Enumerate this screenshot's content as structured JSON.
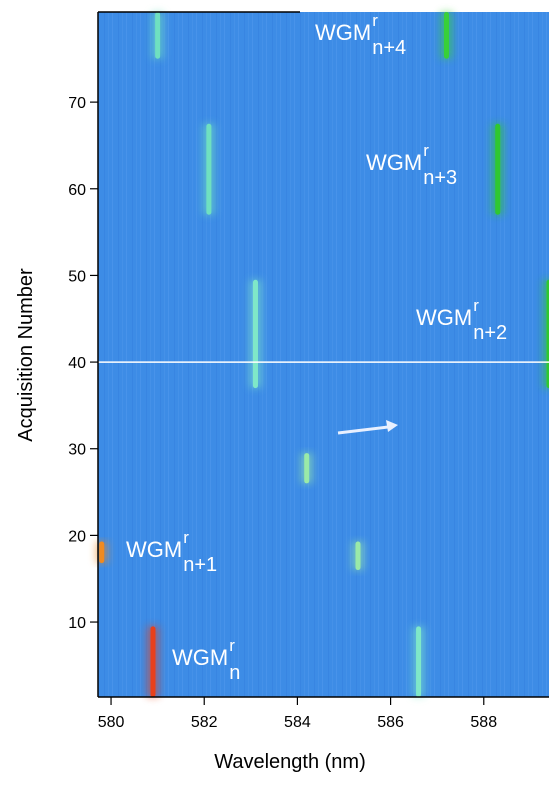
{
  "chart_data": {
    "type": "heatmap",
    "xlabel": "Wavelength (nm)",
    "ylabel": "Acquisition Number",
    "xlim": [
      579.72,
      589.4
    ],
    "ylim": [
      1.35,
      80.4
    ],
    "xticks": [
      580,
      582,
      584,
      586,
      588
    ],
    "yticks": [
      10,
      20,
      30,
      40,
      50,
      60,
      70
    ],
    "background": "#3d8ce6",
    "hline": 40,
    "streaks": [
      {
        "x": 580.9,
        "y": [
          1.35,
          9.5
        ],
        "color": "#e8401c"
      },
      {
        "x": 579.8,
        "y": [
          16.8,
          19.3
        ],
        "color": "#f08a20"
      },
      {
        "x": 581.0,
        "y": [
          75,
          80.4
        ],
        "color": "#6fe0c0"
      },
      {
        "x": 582.1,
        "y": [
          57,
          67.5
        ],
        "color": "#6fe0c0"
      },
      {
        "x": 583.1,
        "y": [
          37,
          49.5
        ],
        "color": "#7fe8c8"
      },
      {
        "x": 584.2,
        "y": [
          26,
          29.5
        ],
        "color": "#9aeaa8"
      },
      {
        "x": 585.3,
        "y": [
          16,
          19.3
        ],
        "color": "#9aeaa8"
      },
      {
        "x": 586.6,
        "y": [
          1.35,
          9.5
        ],
        "color": "#7fe8c8"
      },
      {
        "x": 587.2,
        "y": [
          75,
          80.4
        ],
        "color": "#38d038"
      },
      {
        "x": 588.3,
        "y": [
          57,
          67.5
        ],
        "color": "#2fc82f"
      },
      {
        "x": 589.4,
        "y": [
          37,
          49.5
        ],
        "color": "#2fc82f"
      }
    ],
    "annotations": [
      {
        "text": "WGM",
        "sup": "r",
        "sub": "n+4"
      },
      {
        "text": "WGM",
        "sup": "r",
        "sub": "n+3"
      },
      {
        "text": "WGM",
        "sup": "r",
        "sub": "n+2"
      },
      {
        "text": "WGM",
        "sup": "r",
        "sub": "n+1"
      },
      {
        "text": "WGM",
        "sup": "r",
        "sub": "n"
      }
    ]
  }
}
